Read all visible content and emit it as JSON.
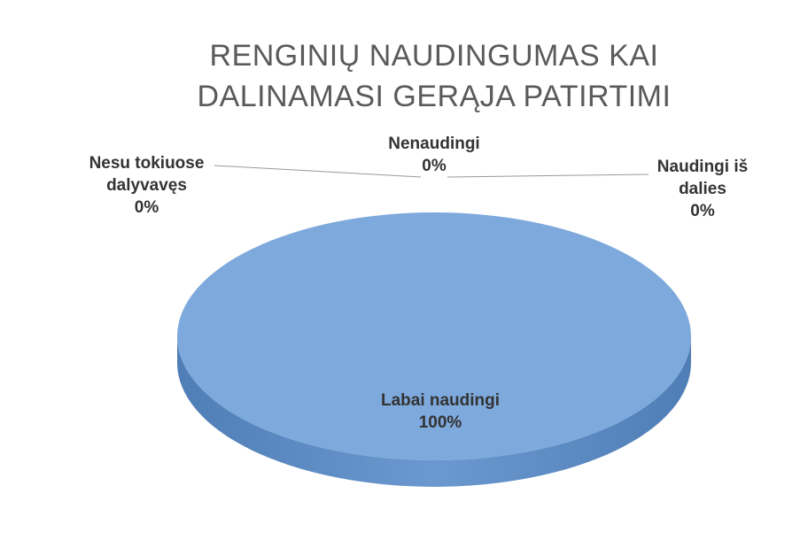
{
  "chart_data": {
    "type": "pie3d",
    "title": "RENGINIŲ NAUDINGUMAS KAI DALINAMASI GERĄJA PATIRTIMI",
    "categories": [
      "Labai naudingi",
      "Naudingi iš dalies",
      "Nenaudingi",
      "Nesu tokiuose dalyvavęs"
    ],
    "values": [
      100,
      0,
      0,
      0
    ],
    "value_labels": [
      "100%",
      "0%",
      "0%",
      "0%"
    ],
    "colors": [
      "#7ea9dc",
      "#c0504d",
      "#9bbb59",
      "#8064a2"
    ]
  }
}
